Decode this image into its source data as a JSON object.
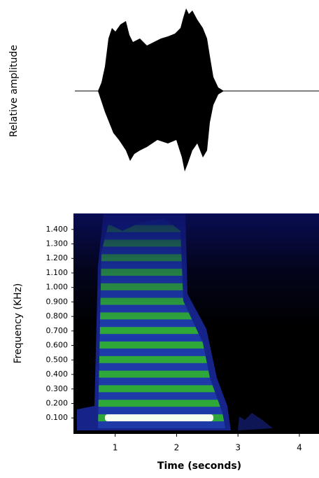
{
  "chart_data": [
    {
      "type": "waveform",
      "ylabel": "Relative amplitude"
    },
    {
      "type": "spectrogram",
      "ylabel": "Frequency (KHz)",
      "xlabel": "Time (seconds)",
      "xlim": [
        0.32,
        4.32
      ],
      "xticks": [
        1,
        2,
        3,
        4
      ],
      "ylim": [
        -0.01,
        1.51
      ],
      "yticks": [
        {
          "value": 0.1,
          "label": "0.100"
        },
        {
          "value": 0.2,
          "label": "0.200"
        },
        {
          "value": 0.3,
          "label": "0.300"
        },
        {
          "value": 0.4,
          "label": "0.400"
        },
        {
          "value": 0.5,
          "label": "0.500"
        },
        {
          "value": 0.6,
          "label": "0.600"
        },
        {
          "value": 0.7,
          "label": "0.700"
        },
        {
          "value": 0.8,
          "label": "0.800"
        },
        {
          "value": 0.9,
          "label": "0.900"
        },
        {
          "value": 1.0,
          "label": "1.000"
        },
        {
          "value": 1.1,
          "label": "1.100"
        },
        {
          "value": 1.2,
          "label": "1.200"
        },
        {
          "value": 1.3,
          "label": "1.300"
        },
        {
          "value": 1.4,
          "label": "1.400"
        }
      ]
    }
  ]
}
